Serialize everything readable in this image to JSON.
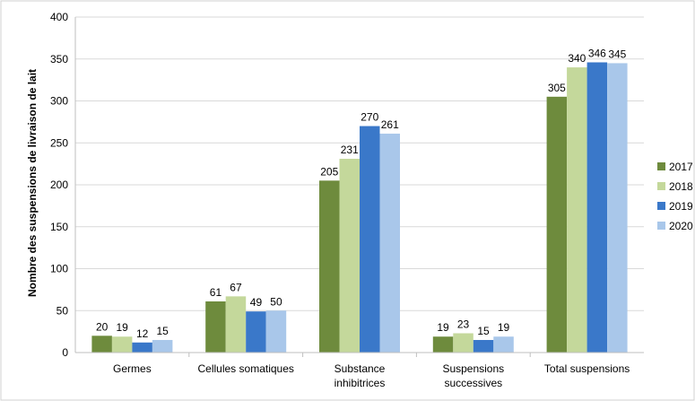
{
  "chart_data": {
    "type": "bar",
    "title": "",
    "xlabel": "",
    "ylabel": "Nombre des suspensions de livraison de lait",
    "ylim": [
      0,
      400
    ],
    "yticks": [
      0,
      50,
      100,
      150,
      200,
      250,
      300,
      350,
      400
    ],
    "grid": true,
    "legend_position": "right",
    "categories": [
      [
        "Germes"
      ],
      [
        "Cellules somatiques"
      ],
      [
        "Substance",
        "inhibitrices"
      ],
      [
        "Suspensions",
        "successives"
      ],
      [
        "Total suspensions"
      ]
    ],
    "series": [
      {
        "name": "2017",
        "color": "#6e8b3d",
        "values": [
          20,
          61,
          205,
          19,
          305
        ]
      },
      {
        "name": "2018",
        "color": "#c4d89b",
        "values": [
          19,
          67,
          231,
          23,
          340
        ]
      },
      {
        "name": "2019",
        "color": "#3a78c9",
        "values": [
          12,
          49,
          270,
          15,
          346
        ]
      },
      {
        "name": "2020",
        "color": "#a9c7ea",
        "values": [
          15,
          50,
          261,
          19,
          345
        ]
      }
    ]
  }
}
